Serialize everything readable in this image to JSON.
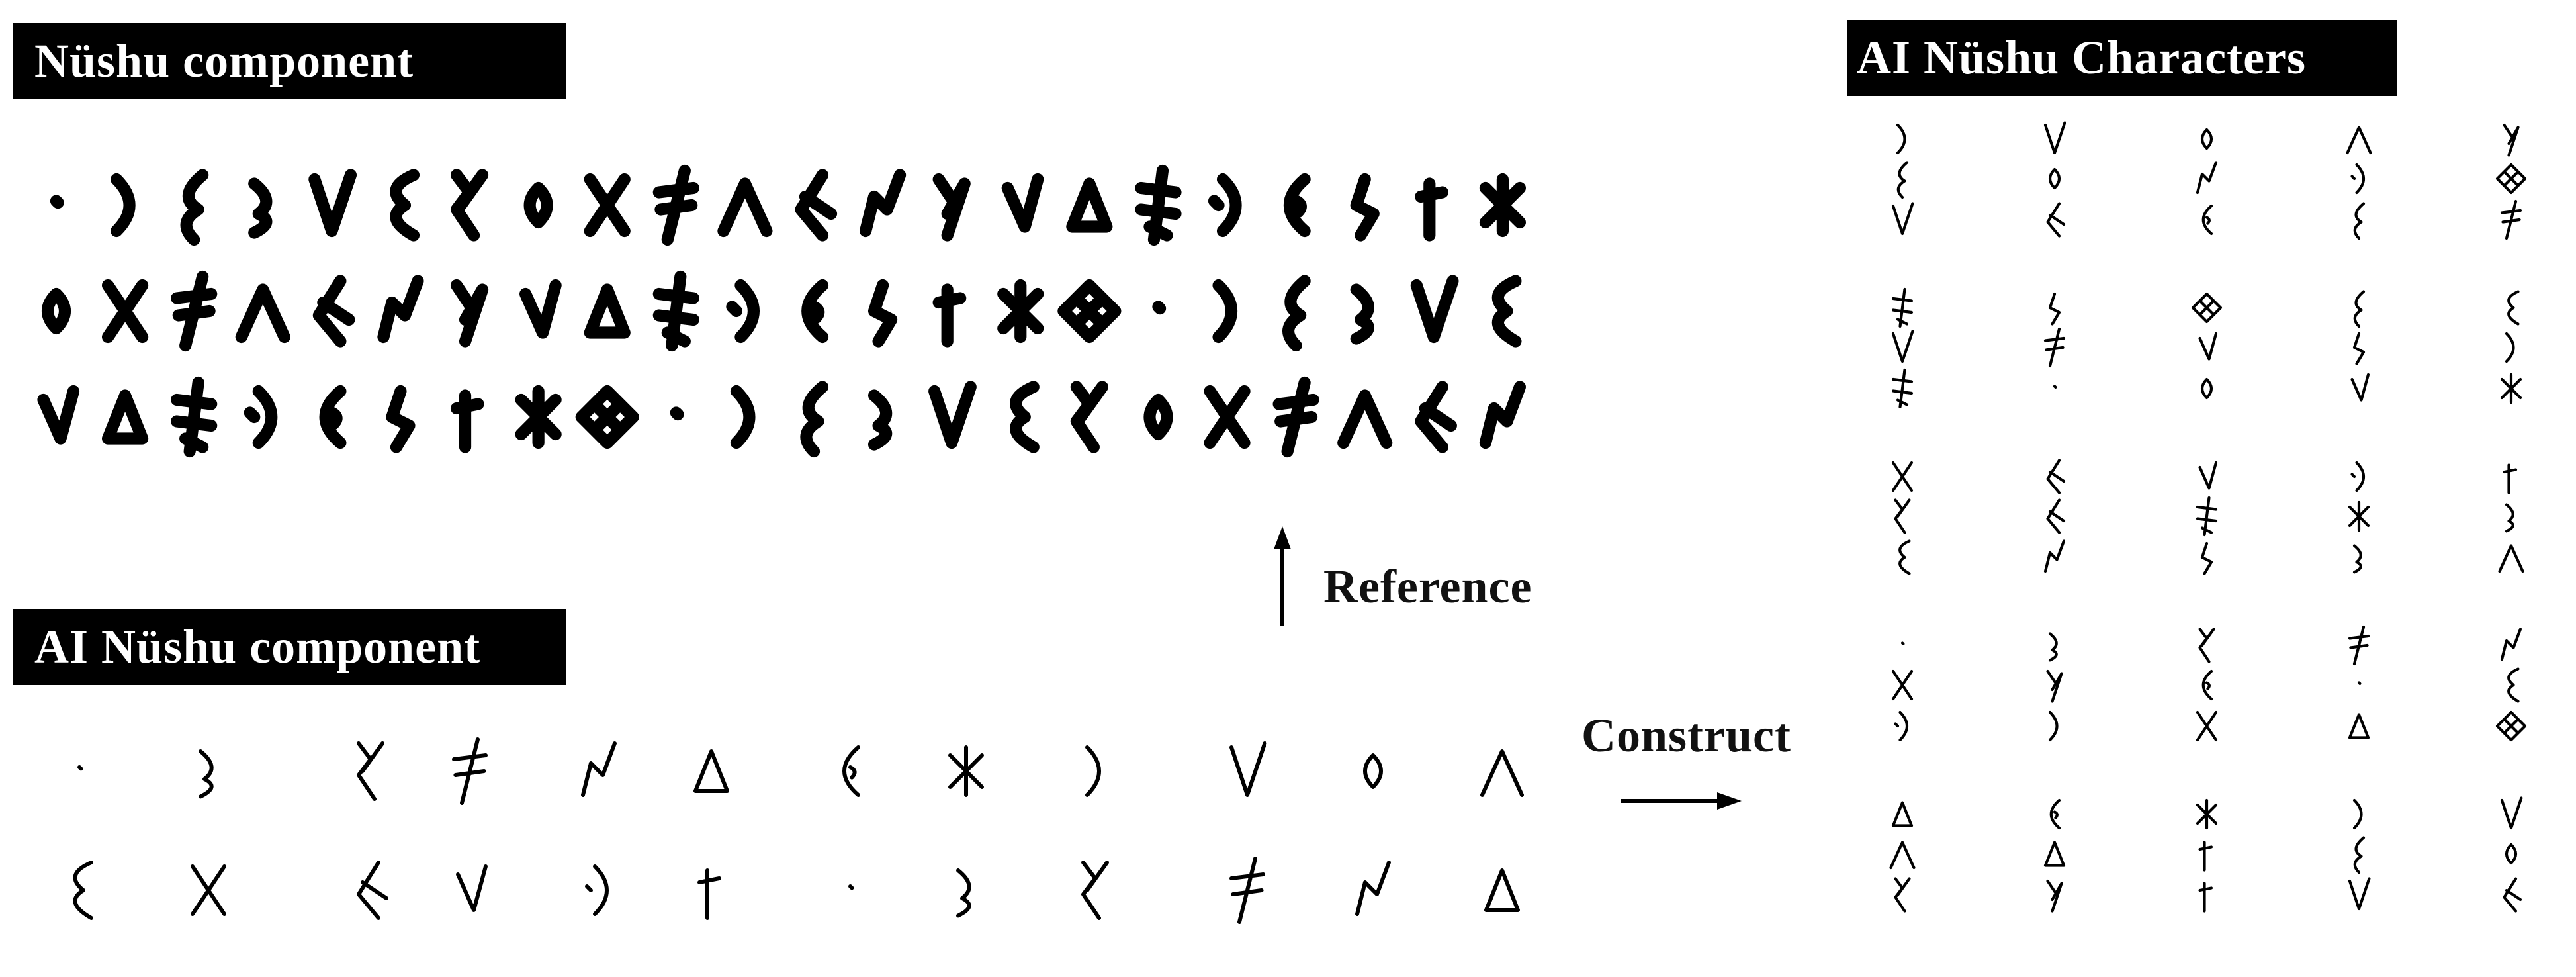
{
  "labels": {
    "nushu_component": "Nüshu component",
    "ai_nushu_component": "AI Nüshu component",
    "ai_nushu_characters": "AI Nüshu  Characters",
    "reference": "Reference",
    "construct": "Construct"
  },
  "sections": {
    "nushu_component": {
      "rows": 3,
      "glyphs_per_row": 22,
      "style": "bold pixelated brush strokes"
    },
    "ai_nushu_component": {
      "rows": 2,
      "glyphs_per_row": 12,
      "style": "thin line strokes"
    },
    "ai_nushu_characters": {
      "rows": 5,
      "columns": 5,
      "style": "stacked composite characters"
    }
  },
  "colors": {
    "ink": "#000000",
    "label_background": "#000000",
    "label_text": "#ffffff",
    "background": "#ffffff"
  },
  "icons": {
    "reference_arrow": "arrow-up-icon",
    "construct_arrow": "arrow-right-icon"
  }
}
